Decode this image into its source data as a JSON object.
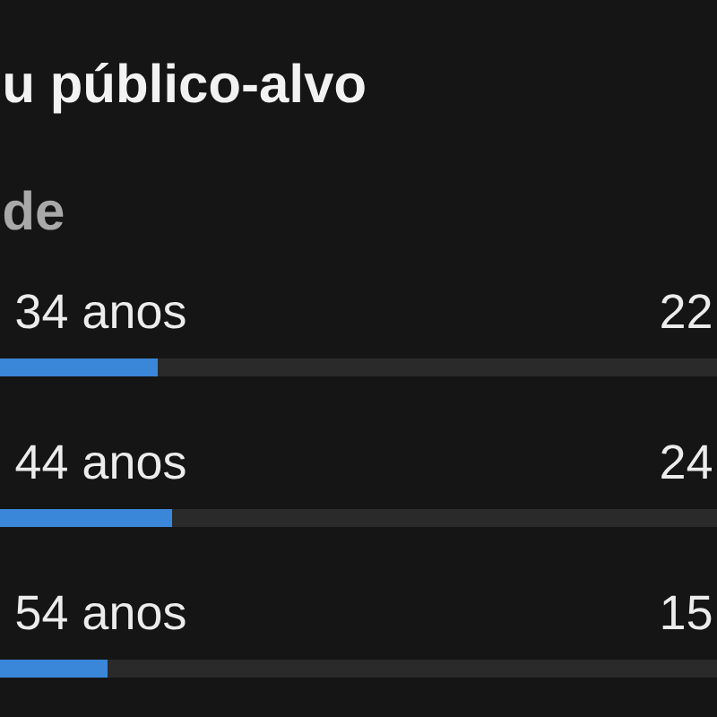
{
  "chart_data": {
    "type": "bar",
    "orientation": "horizontal",
    "title": "u público-alvo",
    "subtitle": "de",
    "categories": [
      "34 anos",
      "44 anos",
      "54 anos"
    ],
    "values": [
      22,
      24,
      15
    ],
    "value_labels": [
      "22",
      "24",
      "15"
    ],
    "color": "#3a86d8",
    "xlim": [
      0,
      100
    ],
    "grid": "y",
    "tick_labels": "y"
  }
}
